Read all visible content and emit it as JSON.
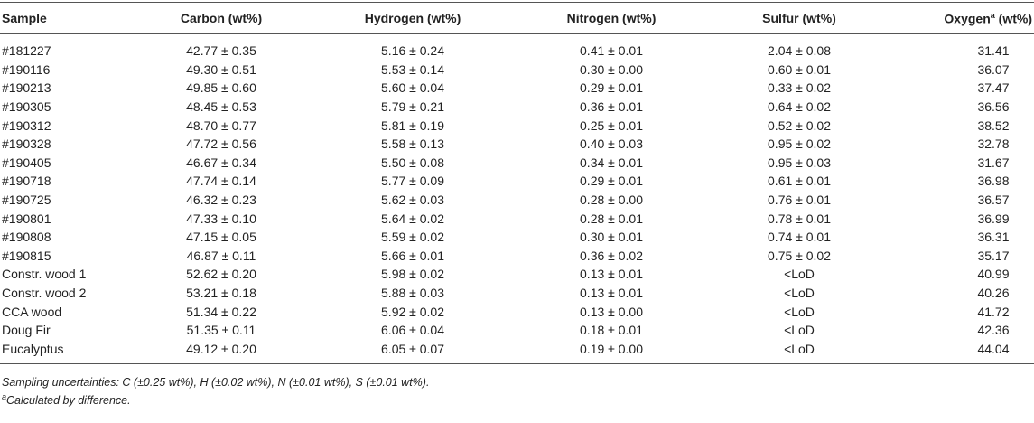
{
  "table": {
    "header": [
      "Sample",
      "Carbon (wt%)",
      "Hydrogen (wt%)",
      "Nitrogen (wt%)",
      "Sulfur (wt%)",
      {
        "text": "Oxygen",
        "sup": "a",
        "unit": " (wt%)"
      }
    ],
    "rows": [
      [
        "#181227",
        "42.77 ± 0.35",
        "5.16 ± 0.24",
        "0.41 ± 0.01",
        "2.04 ± 0.08",
        "31.41"
      ],
      [
        "#190116",
        "49.30 ± 0.51",
        "5.53 ± 0.14",
        "0.30 ± 0.00",
        "0.60 ± 0.01",
        "36.07"
      ],
      [
        "#190213",
        "49.85 ± 0.60",
        "5.60 ± 0.04",
        "0.29 ± 0.01",
        "0.33 ± 0.02",
        "37.47"
      ],
      [
        "#190305",
        "48.45 ± 0.53",
        "5.79 ± 0.21",
        "0.36 ± 0.01",
        "0.64 ± 0.02",
        "36.56"
      ],
      [
        "#190312",
        "48.70 ± 0.77",
        "5.81 ± 0.19",
        "0.25 ± 0.01",
        "0.52 ± 0.02",
        "38.52"
      ],
      [
        "#190328",
        "47.72 ± 0.56",
        "5.58 ± 0.13",
        "0.40 ± 0.03",
        "0.95 ± 0.02",
        "32.78"
      ],
      [
        "#190405",
        "46.67 ± 0.34",
        "5.50 ± 0.08",
        "0.34 ± 0.01",
        "0.95 ± 0.03",
        "31.67"
      ],
      [
        "#190718",
        "47.74 ± 0.14",
        "5.77 ± 0.09",
        "0.29 ± 0.01",
        "0.61 ± 0.01",
        "36.98"
      ],
      [
        "#190725",
        "46.32 ± 0.23",
        "5.62 ± 0.03",
        "0.28 ± 0.00",
        "0.76 ± 0.01",
        "36.57"
      ],
      [
        "#190801",
        "47.33 ± 0.10",
        "5.64 ± 0.02",
        "0.28 ± 0.01",
        "0.78 ± 0.01",
        "36.99"
      ],
      [
        "#190808",
        "47.15 ± 0.05",
        "5.59 ± 0.02",
        "0.30 ± 0.01",
        "0.74 ± 0.01",
        "36.31"
      ],
      [
        "#190815",
        "46.87 ± 0.11",
        "5.66 ± 0.01",
        "0.36 ± 0.02",
        "0.75 ± 0.02",
        "35.17"
      ],
      [
        "Constr. wood 1",
        "52.62 ± 0.20",
        "5.98 ± 0.02",
        "0.13 ± 0.01",
        "<LoD",
        "40.99"
      ],
      [
        "Constr. wood 2",
        "53.21 ± 0.18",
        "5.88 ± 0.03",
        "0.13 ± 0.01",
        "<LoD",
        "40.26"
      ],
      [
        "CCA wood",
        "51.34 ± 0.22",
        "5.92 ± 0.02",
        "0.13 ± 0.00",
        "<LoD",
        "41.72"
      ],
      [
        "Doug Fir",
        "51.35 ± 0.11",
        "6.06 ± 0.04",
        "0.18 ± 0.01",
        "<LoD",
        "42.36"
      ],
      [
        "Eucalyptus",
        "49.12 ± 0.20",
        "6.05 ± 0.07",
        "0.19 ± 0.00",
        "<LoD",
        "44.04"
      ]
    ]
  },
  "footnotes": [
    {
      "text": "Sampling uncertainties: C (±0.25 wt%), H (±0.02 wt%), N (±0.01 wt%), S (±0.01 wt%)."
    },
    {
      "sup": "a",
      "text": "Calculated by difference."
    }
  ]
}
